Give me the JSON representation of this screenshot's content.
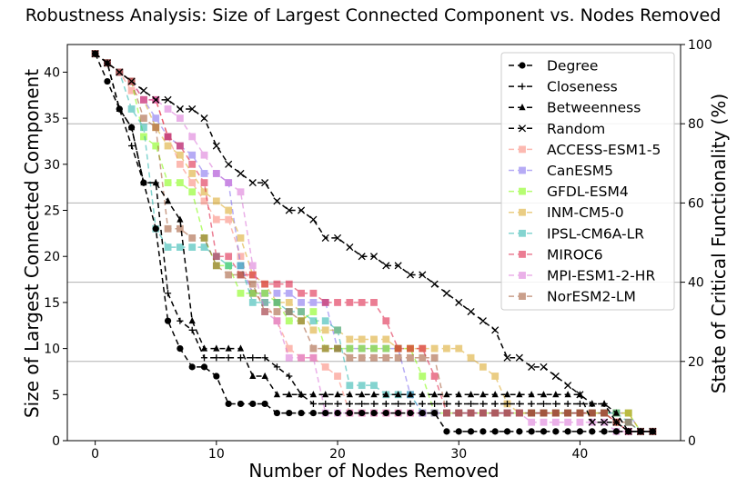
{
  "chart_data": {
    "type": "line",
    "title": "Robustness Analysis: Size of Largest Connected Component vs. Nodes Removed",
    "xlabel": "Number of Nodes Removed",
    "ylabel": "Size of Largest Connected Component",
    "y2label": "State of Critical Functionality (%)",
    "xlim": [
      -2.3,
      48.3
    ],
    "ylim": [
      0,
      43
    ],
    "y2lim": [
      0,
      100
    ],
    "xticks": [
      "0",
      "10",
      "20",
      "30",
      "40"
    ],
    "yticks": [
      "0",
      "5",
      "10",
      "15",
      "20",
      "25",
      "30",
      "35",
      "40"
    ],
    "y2ticks": [
      "0",
      "20",
      "40",
      "60",
      "80",
      "100"
    ],
    "y2grid": true,
    "legend_position": "top-right",
    "series": [
      {
        "name": "Degree",
        "color": "#000000",
        "marker": "circle",
        "dash": "6,4",
        "alpha": 1,
        "values": [
          42,
          39,
          36,
          34,
          28,
          23,
          13,
          10,
          8,
          8,
          7,
          4,
          4,
          4,
          4,
          3,
          3,
          3,
          3,
          3,
          3,
          3,
          3,
          3,
          3,
          3,
          3,
          3,
          3,
          1,
          1,
          1,
          1,
          1,
          1,
          1,
          1,
          1,
          1,
          1,
          1,
          1,
          1,
          1,
          1,
          1,
          1
        ]
      },
      {
        "name": "Closeness",
        "color": "#000000",
        "marker": "plus",
        "dash": "6,4",
        "alpha": 1,
        "values": [
          42,
          41,
          36,
          32,
          28,
          28,
          16,
          13,
          12,
          9,
          9,
          9,
          9,
          9,
          9,
          8,
          7,
          5,
          4,
          4,
          4,
          4,
          4,
          4,
          4,
          4,
          4,
          4,
          4,
          4,
          4,
          4,
          4,
          4,
          4,
          4,
          4,
          4,
          4,
          4,
          4,
          4,
          4,
          2,
          1,
          1,
          1
        ]
      },
      {
        "name": "Betweenness",
        "color": "#000000",
        "marker": "triangle",
        "dash": "6,4",
        "alpha": 1,
        "values": [
          42,
          41,
          36,
          34,
          28,
          28,
          26,
          24,
          13,
          10,
          10,
          10,
          10,
          7,
          7,
          5,
          5,
          5,
          5,
          5,
          5,
          5,
          5,
          5,
          5,
          5,
          5,
          5,
          5,
          5,
          5,
          5,
          5,
          5,
          5,
          5,
          5,
          5,
          5,
          5,
          5,
          4,
          4,
          3,
          1,
          1,
          1
        ]
      },
      {
        "name": "Random",
        "color": "#000000",
        "marker": "x",
        "dash": "6,4",
        "alpha": 1,
        "values": [
          42,
          41,
          40,
          39,
          38,
          37,
          37,
          36,
          36,
          35,
          32,
          30,
          29,
          28,
          28,
          26,
          25,
          25,
          24,
          22,
          22,
          21,
          20,
          20,
          19,
          19,
          18,
          18,
          17,
          16,
          15,
          14,
          13,
          12,
          9,
          9,
          8,
          8,
          7,
          6,
          5,
          2,
          2,
          2,
          1,
          1,
          1
        ]
      },
      {
        "name": "ACCESS-ESM1-5",
        "color": "#fa8072",
        "marker": "square",
        "dash": "6,4",
        "alpha": 0.55,
        "values": [
          42,
          41,
          40,
          38,
          37,
          37,
          33,
          30,
          28,
          26,
          24,
          24,
          20,
          16,
          15,
          13,
          10,
          9,
          9,
          8,
          7,
          3,
          3,
          3,
          3,
          3,
          3,
          3,
          3,
          3,
          3,
          3,
          3,
          3,
          3,
          3,
          3,
          3,
          3,
          3,
          3,
          3,
          3,
          2,
          1,
          1,
          1
        ]
      },
      {
        "name": "CanESM5",
        "color": "#7b68ee",
        "marker": "square",
        "dash": "6,4",
        "alpha": 0.55,
        "values": [
          42,
          41,
          40,
          39,
          37,
          35,
          33,
          32,
          31,
          29,
          29,
          28,
          19,
          16,
          16,
          16,
          16,
          15,
          15,
          15,
          10,
          10,
          10,
          10,
          10,
          10,
          5,
          3,
          3,
          3,
          3,
          3,
          3,
          3,
          3,
          3,
          3,
          3,
          3,
          3,
          3,
          3,
          3,
          3,
          3,
          1,
          1
        ]
      },
      {
        "name": "GFDL-ESM4",
        "color": "#7cfc00",
        "marker": "square",
        "dash": "6,4",
        "alpha": 0.55,
        "values": [
          42,
          41,
          40,
          39,
          33,
          32,
          28,
          28,
          27,
          22,
          19,
          19,
          16,
          16,
          16,
          15,
          13,
          13,
          14,
          10,
          10,
          10,
          10,
          10,
          10,
          10,
          10,
          7,
          3,
          3,
          3,
          3,
          3,
          3,
          3,
          3,
          3,
          3,
          3,
          3,
          3,
          3,
          3,
          3,
          3,
          1,
          1
        ]
      },
      {
        "name": "INM-CM5-0",
        "color": "#daa520",
        "marker": "square",
        "dash": "6,4",
        "alpha": 0.55,
        "values": [
          42,
          41,
          40,
          39,
          37,
          34,
          32,
          31,
          29,
          27,
          26,
          25,
          22,
          18,
          17,
          15,
          15,
          14,
          12,
          12,
          12,
          11,
          11,
          11,
          11,
          10,
          10,
          10,
          10,
          10,
          10,
          9,
          8,
          7,
          4,
          3,
          3,
          3,
          3,
          3,
          3,
          3,
          3,
          3,
          3,
          1,
          1
        ]
      },
      {
        "name": "IPSL-CM6A-LR",
        "color": "#20b2aa",
        "marker": "square",
        "dash": "6,4",
        "alpha": 0.55,
        "values": [
          42,
          41,
          40,
          36,
          34,
          23,
          21,
          21,
          21,
          21,
          20,
          19,
          19,
          15,
          15,
          15,
          14,
          14,
          13,
          13,
          12,
          6,
          6,
          6,
          5,
          5,
          5,
          3,
          3,
          3,
          3,
          3,
          3,
          3,
          3,
          3,
          3,
          3,
          3,
          3,
          3,
          3,
          3,
          3,
          2,
          1,
          1
        ]
      },
      {
        "name": "MIROC6",
        "color": "#dc143c",
        "marker": "square",
        "dash": "6,4",
        "alpha": 0.55,
        "values": [
          42,
          41,
          40,
          39,
          37,
          37,
          33,
          32,
          30,
          28,
          20,
          20,
          18,
          18,
          17,
          17,
          17,
          16,
          16,
          15,
          15,
          15,
          15,
          15,
          13,
          10,
          10,
          10,
          7,
          3,
          3,
          3,
          3,
          3,
          3,
          3,
          3,
          3,
          3,
          3,
          3,
          3,
          3,
          2,
          1,
          1,
          1
        ]
      },
      {
        "name": "MPI-ESM1-2-HR",
        "color": "#da70d6",
        "marker": "square",
        "dash": "6,4",
        "alpha": 0.55,
        "values": [
          42,
          41,
          40,
          39,
          37,
          37,
          36,
          35,
          33,
          31,
          29,
          28,
          27,
          19,
          14,
          13,
          9,
          9,
          9,
          3,
          3,
          3,
          3,
          3,
          3,
          3,
          3,
          3,
          3,
          3,
          3,
          3,
          3,
          3,
          3,
          3,
          2,
          2,
          2,
          2,
          2,
          2,
          2,
          1,
          1,
          1,
          1
        ]
      },
      {
        "name": "NorESM2-LM",
        "color": "#a0522d",
        "marker": "square",
        "dash": "6,4",
        "alpha": 0.55,
        "values": [
          42,
          41,
          40,
          39,
          35,
          34,
          23,
          23,
          22,
          22,
          19,
          18,
          18,
          17,
          14,
          14,
          14,
          13,
          10,
          10,
          10,
          9,
          9,
          9,
          9,
          9,
          9,
          9,
          9,
          3,
          3,
          3,
          3,
          3,
          3,
          3,
          3,
          3,
          3,
          3,
          3,
          3,
          3,
          2,
          2,
          1,
          1
        ]
      }
    ]
  }
}
